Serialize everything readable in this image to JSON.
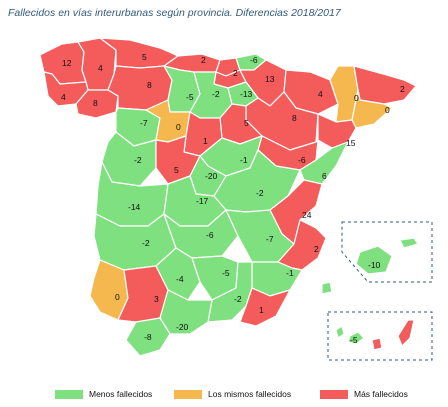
{
  "title": "Fallecidos en vías interurbanas según provincia. Diferencias 2018/2017",
  "colors": {
    "less": "#7fe07f",
    "same": "#f5b84f",
    "more": "#f45b5b"
  },
  "legend": {
    "less": "Menos fallecidos",
    "same": "Los mismos fallecidos",
    "more": "Más fallecidos"
  },
  "labels": {
    "l12": "12",
    "l4a": "4",
    "l5a": "5",
    "l2a": "2",
    "l_6": "-6",
    "l2b": "2",
    "l2c": "2",
    "l4b": "4",
    "l8a": "8",
    "l_5a": "-5",
    "l_2a": "-2",
    "l13a": "13",
    "l_13": "-13",
    "l4c": "4",
    "l0a": "0",
    "l0b": "0",
    "l2d": "2",
    "l_7a": "-7",
    "l0c": "0",
    "l5b": "5",
    "l8b": "8",
    "l1a": "1",
    "l15": "15",
    "l_2b": "-2",
    "l_1": "-1",
    "l_6b": "-6",
    "l5c": "5",
    "l_20a": "-20",
    "l6a": "6",
    "l_14": "-14",
    "l_17": "-17",
    "l_2c": "-2",
    "l24": "24",
    "l_2d": "-2",
    "l_6c": "-6",
    "l_7b": "-7",
    "l2e": "2",
    "l_10": "-10",
    "l_4": "-4",
    "l_5b": "-5",
    "l_1b": "-1",
    "l0d": "0",
    "l3": "3",
    "l_2e": "-2",
    "l1b": "1",
    "l_20b": "-20",
    "l_8": "-8",
    "l_5c": "-5"
  }
}
